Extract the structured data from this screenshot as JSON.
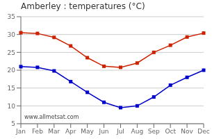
{
  "chart_data": {
    "type": "line",
    "title": "Amberley : temperatures (°C)",
    "categories": [
      "Jan",
      "Feb",
      "Mar",
      "Apr",
      "May",
      "Jun",
      "Jul",
      "Aug",
      "Sep",
      "Oct",
      "Nov",
      "Dec"
    ],
    "series": [
      {
        "color": "#cc2200",
        "values": [
          30.5,
          30.3,
          29.2,
          26.8,
          23.5,
          21.1,
          20.8,
          22.0,
          25.0,
          27.0,
          29.3,
          30.4
        ]
      },
      {
        "color": "#0000cc",
        "values": [
          21.0,
          20.8,
          19.8,
          16.8,
          13.8,
          11.0,
          9.5,
          10.0,
          12.5,
          15.8,
          18.0,
          20.0
        ]
      }
    ],
    "ylim": [
      5,
      35
    ],
    "yticks": [
      5,
      10,
      15,
      20,
      25,
      30,
      35
    ],
    "grid": true,
    "marker": "square",
    "annotation": "www.allmetsat.com"
  }
}
